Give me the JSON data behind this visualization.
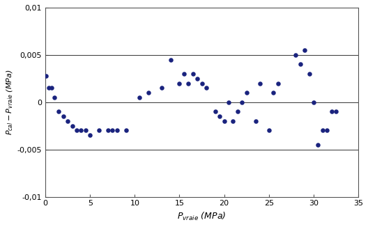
{
  "x": [
    0.1,
    0.4,
    0.7,
    1.0,
    1.5,
    2.0,
    2.5,
    3.0,
    3.5,
    4.0,
    4.5,
    5.0,
    6.0,
    7.0,
    7.5,
    8.0,
    9.0,
    10.5,
    11.5,
    13.0,
    14.0,
    15.0,
    15.5,
    16.0,
    16.5,
    17.0,
    17.5,
    18.0,
    19.0,
    19.5,
    20.0,
    20.5,
    21.0,
    21.5,
    22.0,
    22.5,
    23.5,
    24.0,
    25.0,
    25.5,
    26.0,
    28.0,
    28.5,
    29.0,
    29.5,
    30.0,
    30.5,
    31.0,
    31.5,
    32.0,
    32.5
  ],
  "y": [
    0.0028,
    0.0015,
    0.0015,
    0.0005,
    -0.001,
    -0.0015,
    -0.002,
    -0.0025,
    -0.003,
    -0.003,
    -0.003,
    -0.0035,
    -0.003,
    -0.003,
    -0.003,
    -0.003,
    -0.003,
    0.0005,
    0.001,
    0.0015,
    0.0045,
    0.002,
    0.003,
    0.002,
    0.003,
    0.0025,
    0.002,
    0.0015,
    -0.001,
    -0.0015,
    -0.002,
    0.0,
    -0.002,
    -0.001,
    0.0,
    0.001,
    -0.002,
    0.002,
    -0.003,
    0.001,
    0.002,
    0.005,
    0.004,
    0.0055,
    0.003,
    0.0,
    -0.0045,
    -0.003,
    -0.003,
    -0.001,
    -0.001
  ],
  "dot_color": "#1a237e",
  "dot_size": 22,
  "xlim": [
    0,
    35
  ],
  "ylim": [
    -0.01,
    0.01
  ],
  "xticks": [
    0,
    5,
    10,
    15,
    20,
    25,
    30,
    35
  ],
  "yticks": [
    -0.01,
    -0.005,
    0,
    0.005,
    0.01
  ],
  "ytick_labels": [
    "-0,01",
    "-0,005",
    "0",
    "0,005",
    "0,01"
  ],
  "xtick_labels": [
    "0",
    "5",
    "10",
    "15",
    "20",
    "25",
    "30",
    "35"
  ],
  "xlabel": "$P_{vraie}$ (MPa)",
  "ylabel": "$P_{cal}-P_{vraie}$ (MPa)",
  "hlines": [
    -0.005,
    0.0,
    0.005
  ],
  "bg_color": "#ffffff",
  "spine_color": "#555555",
  "hline_color": "#333333",
  "hline_lw": 0.7
}
